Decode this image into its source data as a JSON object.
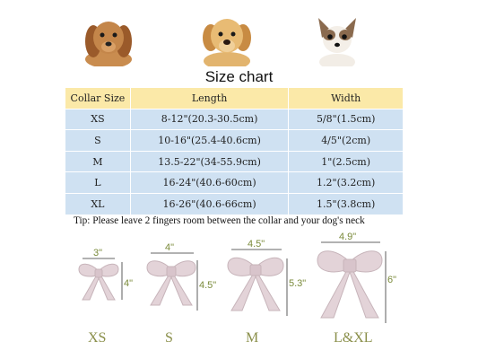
{
  "title": "Size chart",
  "table": {
    "headers": [
      "Collar Size",
      "Length",
      "Width"
    ],
    "rows": [
      {
        "size": "XS",
        "length": "8-12\"(20.3-30.5cm)",
        "width": "5/8\"(1.5cm)"
      },
      {
        "size": "S",
        "length": "10-16\"(25.4-40.6cm)",
        "width": "4/5\"(2cm)"
      },
      {
        "size": "M",
        "length": "13.5-22\"(34-55.9cm)",
        "width": "1\"(2.5cm)"
      },
      {
        "size": "L",
        "length": "16-24\"(40.6-60cm)",
        "width": "1.2\"(3.2cm)"
      },
      {
        "size": "XL",
        "length": "16-26\"(40.6-66cm)",
        "width": "1.5\"(3.8cm)"
      }
    ]
  },
  "tip": "Tip: Please leave 2 fingers room between the collar and your dog's neck",
  "bows": [
    {
      "label": "XS",
      "width": "3\"",
      "height": "4\""
    },
    {
      "label": "S",
      "width": "4\"",
      "height": "4.5\""
    },
    {
      "label": "M",
      "width": "4.5\"",
      "height": "5.3\""
    },
    {
      "label": "L&XL",
      "width": "4.9\"",
      "height": "6\""
    }
  ],
  "colors": {
    "header_bg": "#fbe9a8",
    "row_bg": "#cfe1f2",
    "bow": "#e3d3d8",
    "dimension_text": "#7a8a3a"
  },
  "images": [
    "dachshund-puppy-photo",
    "golden-retriever-puppy-photo",
    "chihuahua-photo"
  ]
}
